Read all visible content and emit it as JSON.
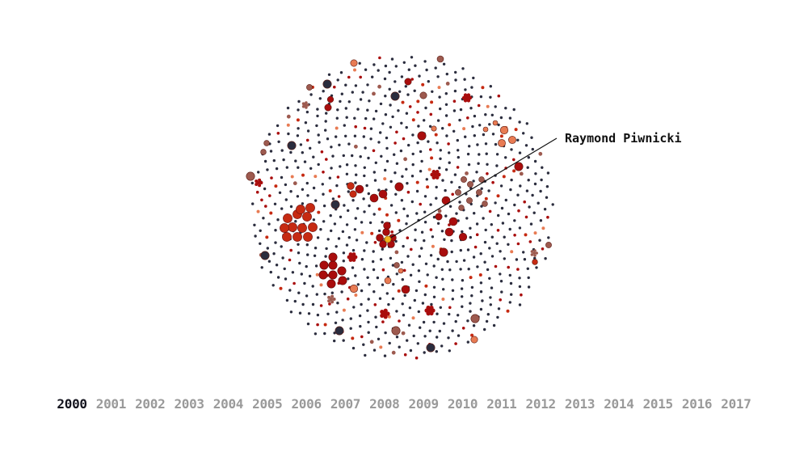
{
  "annotation": {
    "label": "Raymond Piwnicki"
  },
  "timeline": {
    "selected": "2000",
    "years": [
      "2000",
      "2001",
      "2002",
      "2003",
      "2004",
      "2005",
      "2006",
      "2007",
      "2008",
      "2009",
      "2010",
      "2011",
      "2012",
      "2013",
      "2014",
      "2015",
      "2016",
      "2017"
    ]
  },
  "colors": {
    "navy": "#2b2d3e",
    "dark_red": "#a90d0d",
    "red": "#c62a12",
    "coral": "#e87b53",
    "mauve": "#9d5a4f",
    "highlight": "#f2b21e",
    "background": "#ffffff",
    "year_active": "#14141e",
    "year_inactive": "#9a9a9a"
  },
  "chart_data": {
    "type": "scatter",
    "layout": "packed-circle",
    "title": "",
    "node_count_visible": "approx. 900",
    "node_categories": [
      "navy",
      "dark_red",
      "red",
      "coral",
      "mauve"
    ],
    "highlighted_node": "Raymond Piwnicki",
    "legend": "none",
    "grid": false
  }
}
